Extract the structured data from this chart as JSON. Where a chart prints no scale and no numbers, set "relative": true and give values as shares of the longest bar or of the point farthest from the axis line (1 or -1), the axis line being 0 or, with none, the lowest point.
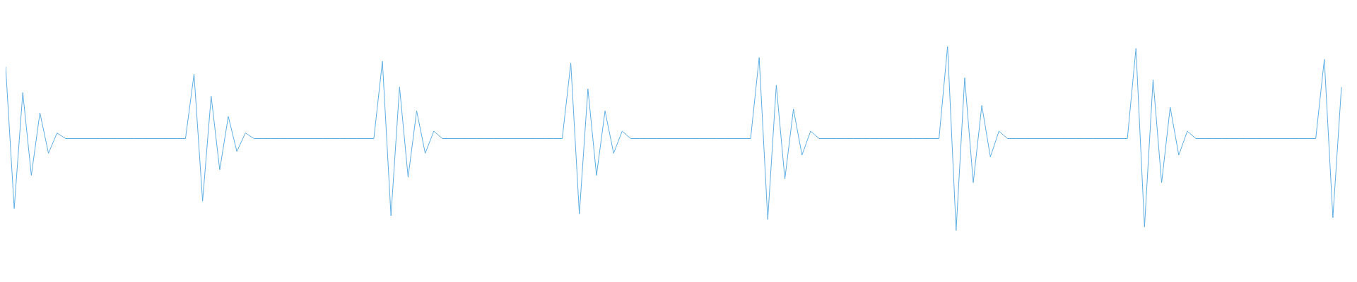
{
  "chart_data": {
    "type": "line",
    "relative": true,
    "marker": "none",
    "color": "#5dade2",
    "categories": [
      null,
      null,
      null,
      null,
      null,
      null,
      null,
      null,
      null,
      null,
      null,
      null,
      null,
      null,
      null,
      null,
      null,
      null,
      null,
      null,
      null,
      null,
      null,
      null,
      null,
      null,
      null,
      null,
      null,
      null,
      null,
      null,
      null,
      null,
      null,
      null,
      null,
      null,
      null,
      null,
      null,
      null,
      null,
      null,
      null,
      null,
      null,
      null,
      null,
      null,
      null,
      null,
      null,
      null,
      null,
      null,
      null,
      null,
      null,
      null,
      null,
      null,
      null,
      null,
      null,
      null,
      null,
      null,
      null,
      null,
      null,
      null,
      null,
      null,
      null,
      null,
      null,
      null,
      null,
      null,
      null,
      null,
      null,
      null,
      null,
      null,
      null,
      null,
      null,
      null,
      null,
      null,
      null,
      null,
      null,
      null,
      null,
      null,
      null,
      null,
      null,
      null,
      null,
      null,
      null,
      null,
      null,
      null,
      null,
      null,
      null,
      null,
      null,
      null,
      null,
      null,
      null,
      null,
      null,
      null,
      null,
      null,
      null,
      null,
      null,
      null,
      null,
      null,
      null,
      null,
      null,
      null,
      null,
      null,
      null,
      null,
      null,
      null,
      null,
      null,
      null,
      null,
      null,
      null,
      null,
      null,
      null,
      null,
      null,
      null,
      null,
      null,
      null,
      null,
      null,
      null,
      null
    ],
    "values": [
      0.89,
      0.12,
      0.75,
      0.3,
      0.64,
      0.42,
      0.53,
      0.5,
      0.5,
      0.5,
      0.5,
      0.5,
      0.5,
      0.5,
      0.5,
      0.5,
      0.5,
      0.5,
      0.5,
      0.5,
      0.5,
      0.5,
      0.85,
      0.16,
      0.73,
      0.33,
      0.62,
      0.43,
      0.53,
      0.5,
      0.5,
      0.5,
      0.5,
      0.5,
      0.5,
      0.5,
      0.5,
      0.5,
      0.5,
      0.5,
      0.5,
      0.5,
      0.5,
      0.5,
      0.92,
      0.08,
      0.78,
      0.29,
      0.65,
      0.42,
      0.54,
      0.5,
      0.5,
      0.5,
      0.5,
      0.5,
      0.5,
      0.5,
      0.5,
      0.5,
      0.5,
      0.5,
      0.5,
      0.5,
      0.5,
      0.5,
      0.91,
      0.09,
      0.77,
      0.3,
      0.65,
      0.42,
      0.54,
      0.5,
      0.5,
      0.5,
      0.5,
      0.5,
      0.5,
      0.5,
      0.5,
      0.5,
      0.5,
      0.5,
      0.5,
      0.5,
      0.5,
      0.5,
      0.94,
      0.06,
      0.79,
      0.28,
      0.66,
      0.41,
      0.54,
      0.5,
      0.5,
      0.5,
      0.5,
      0.5,
      0.5,
      0.5,
      0.5,
      0.5,
      0.5,
      0.5,
      0.5,
      0.5,
      0.5,
      0.5,
      1,
      0,
      0.83,
      0.26,
      0.68,
      0.4,
      0.54,
      0.5,
      0.5,
      0.5,
      0.5,
      0.5,
      0.5,
      0.5,
      0.5,
      0.5,
      0.5,
      0.5,
      0.5,
      0.5,
      0.5,
      0.5,
      0.99,
      0.02,
      0.82,
      0.26,
      0.67,
      0.41,
      0.54,
      0.5,
      0.5,
      0.5,
      0.5,
      0.5,
      0.5,
      0.5,
      0.5,
      0.5,
      0.5,
      0.5,
      0.5,
      0.5,
      0.5,
      0.5,
      0.93,
      0.07,
      0.78
    ]
  }
}
